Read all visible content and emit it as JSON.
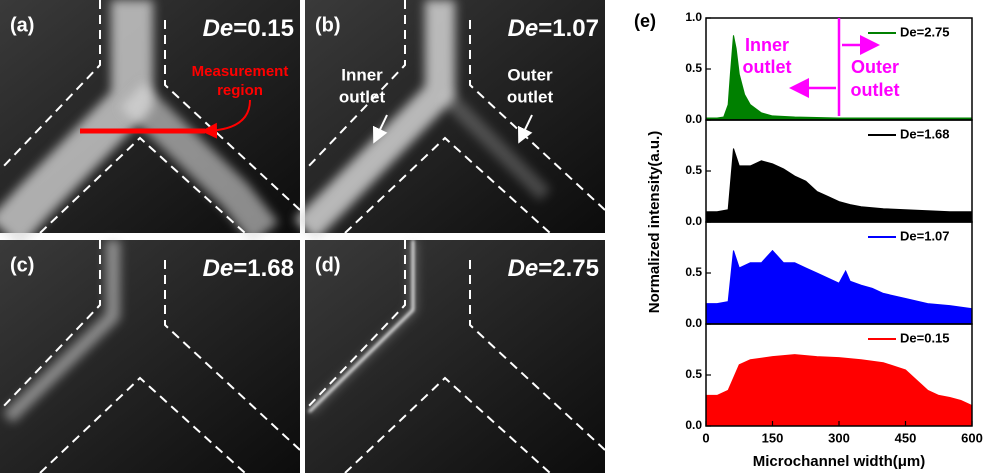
{
  "micrographs": [
    {
      "label": "(a)",
      "param": "De",
      "value": "=0.15"
    },
    {
      "label": "(b)",
      "param": "De",
      "value": "=1.07"
    },
    {
      "label": "(c)",
      "param": "De",
      "value": "=1.68"
    },
    {
      "label": "(d)",
      "param": "De",
      "value": "=2.75"
    }
  ],
  "annotations": {
    "measurement": [
      "Measurement",
      "region"
    ],
    "inner": [
      "Inner",
      "outlet"
    ],
    "outer": [
      "Outer",
      "outlet"
    ]
  },
  "panel_e": {
    "label": "(e)",
    "ylabel": "Normalized intensity(a.u.)"
  },
  "chart_data": [
    {
      "type": "area",
      "x": [
        0,
        25,
        40,
        50,
        55,
        62,
        68,
        75,
        87,
        100,
        125,
        150,
        200,
        300,
        400,
        500,
        600
      ],
      "series": [
        {
          "name": "De=2.75",
          "color": "#008000",
          "values": [
            0.02,
            0.02,
            0.03,
            0.15,
            0.45,
            0.83,
            0.7,
            0.45,
            0.25,
            0.15,
            0.07,
            0.04,
            0.03,
            0.02,
            0.02,
            0.02,
            0.02
          ]
        }
      ],
      "xlim": [
        0,
        600
      ],
      "ylim": [
        0,
        1.0
      ],
      "yticks": [
        {
          "value": 0,
          "label": "0.0"
        },
        {
          "value": 0.5,
          "label": "0.5"
        },
        {
          "value": 1.0,
          "label": "1.0"
        }
      ],
      "divider_x": 300,
      "annotation_color": "#ff00ff",
      "inner_label": [
        "Inner",
        "outlet"
      ],
      "outer_label": [
        "Outer",
        "outlet"
      ]
    },
    {
      "type": "area",
      "x": [
        0,
        25,
        50,
        62,
        75,
        100,
        125,
        150,
        175,
        200,
        225,
        250,
        275,
        300,
        325,
        350,
        375,
        400,
        450,
        500,
        550,
        600
      ],
      "series": [
        {
          "name": "De=1.68",
          "color": "#000000",
          "values": [
            0.1,
            0.1,
            0.12,
            0.72,
            0.55,
            0.55,
            0.6,
            0.57,
            0.52,
            0.45,
            0.4,
            0.3,
            0.25,
            0.2,
            0.17,
            0.15,
            0.14,
            0.13,
            0.12,
            0.11,
            0.1,
            0.1
          ]
        }
      ],
      "xlim": [
        0,
        600
      ],
      "ylim": [
        0,
        1.0
      ],
      "yticks": [
        {
          "value": 0,
          "label": "0.0"
        },
        {
          "value": 0.5,
          "label": "0.5"
        }
      ]
    },
    {
      "type": "area",
      "x": [
        0,
        25,
        50,
        62,
        75,
        100,
        125,
        150,
        175,
        200,
        225,
        250,
        275,
        300,
        315,
        325,
        350,
        375,
        400,
        450,
        500,
        550,
        600
      ],
      "series": [
        {
          "name": "De=1.07",
          "color": "#0000ff",
          "values": [
            0.2,
            0.2,
            0.22,
            0.72,
            0.55,
            0.6,
            0.6,
            0.72,
            0.6,
            0.6,
            0.55,
            0.5,
            0.45,
            0.4,
            0.52,
            0.42,
            0.38,
            0.35,
            0.3,
            0.25,
            0.2,
            0.18,
            0.15
          ]
        }
      ],
      "xlim": [
        0,
        600
      ],
      "ylim": [
        0,
        1.0
      ],
      "yticks": [
        {
          "value": 0,
          "label": "0.0"
        },
        {
          "value": 0.5,
          "label": "0.5"
        }
      ]
    },
    {
      "type": "area",
      "x": [
        0,
        25,
        50,
        75,
        100,
        150,
        200,
        250,
        300,
        350,
        400,
        450,
        475,
        500,
        525,
        550,
        575,
        600
      ],
      "series": [
        {
          "name": "De=0.15",
          "color": "#ff0000",
          "values": [
            0.3,
            0.3,
            0.35,
            0.6,
            0.65,
            0.68,
            0.7,
            0.68,
            0.67,
            0.65,
            0.62,
            0.55,
            0.45,
            0.35,
            0.3,
            0.28,
            0.25,
            0.2
          ]
        }
      ],
      "xlim": [
        0,
        600
      ],
      "ylim": [
        0,
        1.0
      ],
      "yticks": [
        {
          "value": 0,
          "label": "0.0"
        },
        {
          "value": 0.5,
          "label": "0.5"
        }
      ],
      "xticks": [
        0,
        150,
        300,
        450,
        600
      ],
      "xlabel": "Microchannel width(μm)"
    }
  ]
}
